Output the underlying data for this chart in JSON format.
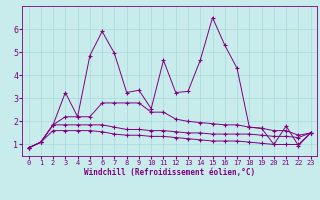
{
  "xlabel": "Windchill (Refroidissement éolien,°C)",
  "background_color": "#c8ecec",
  "line_color": "#800080",
  "grid_color": "#a8d8d8",
  "xlim": [
    -0.5,
    23.5
  ],
  "ylim": [
    0.5,
    7.0
  ],
  "x_ticks": [
    0,
    1,
    2,
    3,
    4,
    5,
    6,
    7,
    8,
    9,
    10,
    11,
    12,
    13,
    14,
    15,
    16,
    17,
    18,
    19,
    20,
    21,
    22,
    23
  ],
  "y_ticks": [
    1,
    2,
    3,
    4,
    5,
    6
  ],
  "series1_x": [
    0,
    1,
    2,
    3,
    4,
    5,
    6,
    7,
    8,
    9,
    10,
    11,
    12,
    13,
    14,
    15,
    16,
    17,
    18,
    19,
    20,
    21,
    22,
    23
  ],
  "series1_y": [
    0.85,
    1.1,
    1.85,
    3.25,
    2.2,
    4.85,
    5.9,
    4.95,
    3.25,
    3.35,
    2.55,
    4.65,
    3.25,
    3.3,
    4.65,
    6.5,
    5.3,
    4.3,
    1.75,
    1.7,
    1.0,
    1.8,
    0.95,
    1.5
  ],
  "series2_x": [
    0,
    1,
    2,
    3,
    4,
    5,
    6,
    7,
    8,
    9,
    10,
    11,
    12,
    13,
    14,
    15,
    16,
    17,
    18,
    19,
    20,
    21,
    22,
    23
  ],
  "series2_y": [
    0.85,
    1.1,
    1.85,
    2.2,
    2.2,
    2.2,
    2.8,
    2.8,
    2.8,
    2.8,
    2.4,
    2.4,
    2.1,
    2.0,
    1.95,
    1.9,
    1.85,
    1.85,
    1.75,
    1.7,
    1.6,
    1.6,
    1.4,
    1.5
  ],
  "series3_x": [
    0,
    1,
    2,
    3,
    4,
    5,
    6,
    7,
    8,
    9,
    10,
    11,
    12,
    13,
    14,
    15,
    16,
    17,
    18,
    19,
    20,
    21,
    22,
    23
  ],
  "series3_y": [
    0.85,
    1.1,
    1.85,
    1.85,
    1.85,
    1.85,
    1.85,
    1.75,
    1.65,
    1.65,
    1.6,
    1.6,
    1.55,
    1.5,
    1.5,
    1.45,
    1.45,
    1.45,
    1.45,
    1.4,
    1.35,
    1.35,
    1.3,
    1.5
  ],
  "series4_x": [
    0,
    1,
    2,
    3,
    4,
    5,
    6,
    7,
    8,
    9,
    10,
    11,
    12,
    13,
    14,
    15,
    16,
    17,
    18,
    19,
    20,
    21,
    22,
    23
  ],
  "series4_y": [
    0.85,
    1.1,
    1.6,
    1.6,
    1.6,
    1.6,
    1.55,
    1.45,
    1.4,
    1.4,
    1.35,
    1.35,
    1.3,
    1.25,
    1.2,
    1.15,
    1.15,
    1.15,
    1.1,
    1.05,
    1.0,
    1.0,
    1.0,
    1.5
  ],
  "tick_fontsize": 5,
  "xlabel_fontsize": 5,
  "lw": 0.7,
  "ms": 2.5
}
